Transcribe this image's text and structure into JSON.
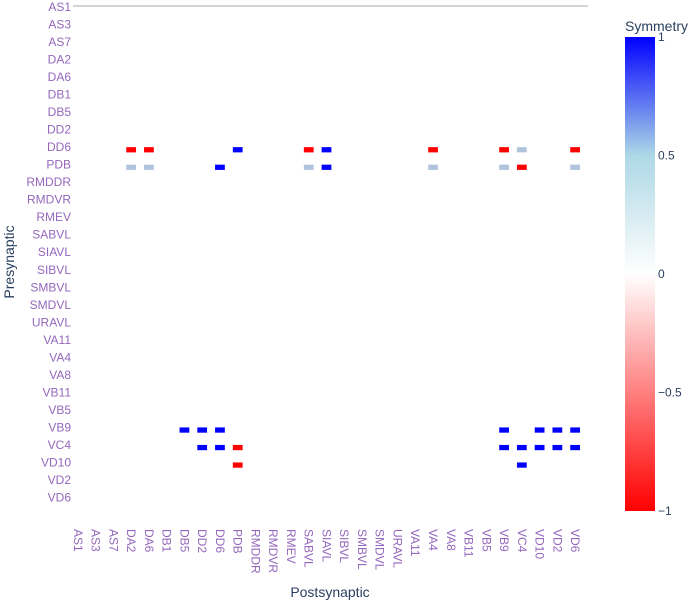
{
  "chart_data": {
    "type": "heatmap",
    "xlabel": "Postsynaptic",
    "ylabel": "Presynaptic",
    "colorbar": {
      "title": "Symmetry",
      "range": [
        -1,
        1
      ],
      "ticks": [
        "1",
        "0.5",
        "0",
        "−0.5",
        "−1"
      ],
      "tick_values": [
        1,
        0.5,
        0,
        -0.5,
        -1
      ],
      "colors": [
        "#ff0000",
        "#ffffff",
        "#add8e6",
        "#0000ff"
      ]
    },
    "x_tick_labels": [
      "AS1",
      "AS3",
      "AS7",
      "DA2",
      "DA6",
      "DB1",
      "DB5",
      "DD2",
      "DD6",
      "PDB",
      "RMDDR",
      "RMDVR",
      "RMEV",
      "SABVL",
      "SIAVL",
      "SIBVL",
      "SMBVL",
      "SMDVL",
      "URAVL",
      "VA11",
      "VA4",
      "VA8",
      "VB11",
      "VB5",
      "VB9",
      "VC4",
      "VD10",
      "VD2",
      "VD6"
    ],
    "y_tick_labels": [
      "AS1",
      "AS3",
      "AS7",
      "DA2",
      "DA6",
      "DB1",
      "DB5",
      "DD2",
      "DD6",
      "PDB",
      "RMDDR",
      "RMDVR",
      "RMEV",
      "SABVL",
      "SIAVL",
      "SIBVL",
      "SMBVL",
      "SMDVL",
      "URAVL",
      "VA11",
      "VA4",
      "VA8",
      "VB11",
      "VB5",
      "VB9",
      "VC4",
      "VD10",
      "VD2",
      "VD6"
    ],
    "grid": false,
    "cells": [
      {
        "x": "DA2",
        "y": "DD6",
        "v": -1
      },
      {
        "x": "DA2",
        "y": "PDB",
        "v": 0.5
      },
      {
        "x": "DA6",
        "y": "DD6",
        "v": -1
      },
      {
        "x": "DA6",
        "y": "PDB",
        "v": 0.5
      },
      {
        "x": "PDB",
        "y": "DD6",
        "v": 1
      },
      {
        "x": "DD6",
        "y": "PDB",
        "v": 1
      },
      {
        "x": "SABVL",
        "y": "DD6",
        "v": -1
      },
      {
        "x": "SABVL",
        "y": "PDB",
        "v": 0.5
      },
      {
        "x": "SIAVL",
        "y": "DD6",
        "v": 1
      },
      {
        "x": "SIAVL",
        "y": "PDB",
        "v": 1
      },
      {
        "x": "VA4",
        "y": "DD6",
        "v": -1
      },
      {
        "x": "VA4",
        "y": "PDB",
        "v": 0.5
      },
      {
        "x": "VB9",
        "y": "DD6",
        "v": -1
      },
      {
        "x": "VB9",
        "y": "PDB",
        "v": 0.5
      },
      {
        "x": "VC4",
        "y": "DD6",
        "v": 0.5
      },
      {
        "x": "VC4",
        "y": "PDB",
        "v": -1
      },
      {
        "x": "VD6",
        "y": "DD6",
        "v": -1
      },
      {
        "x": "VD6",
        "y": "PDB",
        "v": 0.5
      },
      {
        "x": "DB5",
        "y": "VB9",
        "v": 1
      },
      {
        "x": "DD2",
        "y": "VB9",
        "v": 1
      },
      {
        "x": "DD2",
        "y": "VC4",
        "v": 1
      },
      {
        "x": "DD6",
        "y": "VB9",
        "v": 1
      },
      {
        "x": "DD6",
        "y": "VC4",
        "v": 1
      },
      {
        "x": "PDB",
        "y": "VC4",
        "v": -1
      },
      {
        "x": "PDB",
        "y": "VD10",
        "v": -1
      },
      {
        "x": "VB9",
        "y": "VB9",
        "v": 1
      },
      {
        "x": "VB9",
        "y": "VC4",
        "v": 1
      },
      {
        "x": "VC4",
        "y": "VC4",
        "v": 1
      },
      {
        "x": "VC4",
        "y": "VD10",
        "v": 1
      },
      {
        "x": "VD10",
        "y": "VB9",
        "v": 1
      },
      {
        "x": "VD10",
        "y": "VC4",
        "v": 1
      },
      {
        "x": "VD2",
        "y": "VB9",
        "v": 1
      },
      {
        "x": "VD2",
        "y": "VC4",
        "v": 1
      },
      {
        "x": "VD6",
        "y": "VB9",
        "v": 1
      },
      {
        "x": "VD6",
        "y": "VC4",
        "v": 1
      }
    ]
  }
}
